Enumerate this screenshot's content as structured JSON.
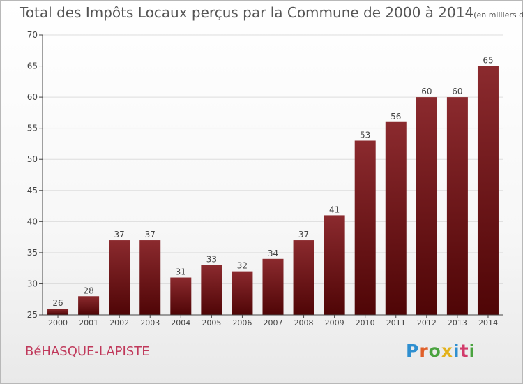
{
  "title": "Total des Impôts Locaux perçus par la Commune de 2000 à 2014",
  "title_unit": "(en milliers d'€)",
  "commune": "BéHASQUE-LAPISTE",
  "logo": {
    "text": "Proxiti",
    "letter_colors": [
      "#2f8fd0",
      "#e0602a",
      "#4aa33f",
      "#e3b21c",
      "#2f8fd0",
      "#d23b6b",
      "#4aa33f"
    ]
  },
  "colors": {
    "bar_top": "#8b2a2e",
    "bar_bottom": "#4f0506",
    "axis": "#444444",
    "grid": "#dddddd",
    "text": "#444444"
  },
  "chart_data": {
    "type": "bar",
    "categories": [
      "2000",
      "2001",
      "2002",
      "2003",
      "2004",
      "2005",
      "2006",
      "2007",
      "2008",
      "2009",
      "2010",
      "2011",
      "2012",
      "2013",
      "2014"
    ],
    "values": [
      26,
      28,
      37,
      37,
      31,
      33,
      32,
      34,
      37,
      41,
      53,
      56,
      60,
      60,
      65
    ],
    "ylim": [
      25,
      70
    ],
    "yticks": [
      25,
      30,
      35,
      40,
      45,
      50,
      55,
      60,
      65,
      70
    ],
    "grid": true,
    "data_labels": true
  }
}
